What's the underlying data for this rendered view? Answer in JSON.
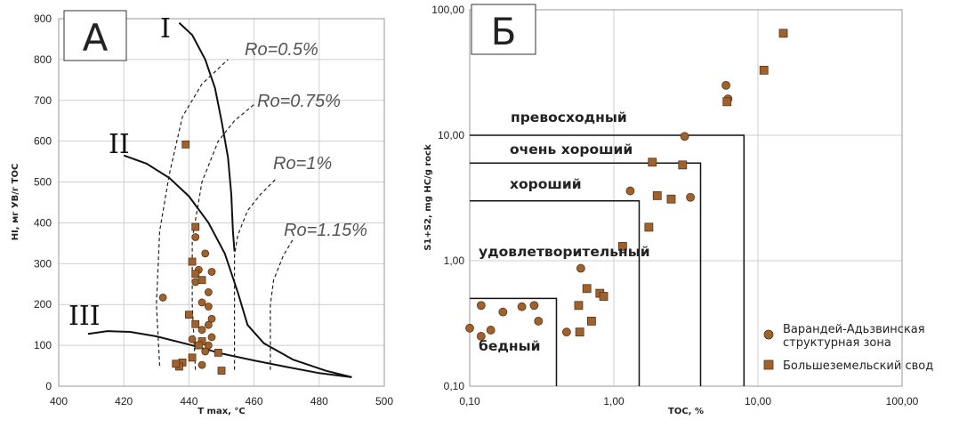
{
  "chart_data": [
    {
      "type": "scatter",
      "panel_label": "А",
      "xlabel": "T max, °C",
      "ylabel": "HI, мг УВ/г ТОС",
      "xlim": [
        400,
        500
      ],
      "ylim": [
        0,
        900
      ],
      "x_ticks": [
        "400",
        "420",
        "440",
        "460",
        "480",
        "500"
      ],
      "y_ticks": [
        "0",
        "100",
        "200",
        "300",
        "400",
        "500",
        "600",
        "700",
        "800",
        "900"
      ],
      "grid": true,
      "kerogen_curves": [
        {
          "label": "I",
          "points": [
            [
              437,
              890
            ],
            [
              441,
              860
            ],
            [
              445,
              800
            ],
            [
              448,
              730
            ],
            [
              450,
              650
            ],
            [
              452,
              560
            ],
            [
              453,
              470
            ],
            [
              453.5,
              380
            ],
            [
              454,
              330
            ]
          ]
        },
        {
          "label": "II",
          "points": [
            [
              420,
              565
            ],
            [
              427,
              545
            ],
            [
              434,
              510
            ],
            [
              440,
              465
            ],
            [
              446,
              400
            ],
            [
              451,
              325
            ],
            [
              455,
              230
            ],
            [
              458,
              150
            ],
            [
              463,
              105
            ],
            [
              472,
              65
            ],
            [
              482,
              38
            ],
            [
              490,
              22
            ]
          ]
        },
        {
          "label": "III",
          "points": [
            [
              409,
              128
            ],
            [
              415,
              135
            ],
            [
              422,
              133
            ],
            [
              430,
              122
            ],
            [
              440,
              102
            ],
            [
              450,
              80
            ],
            [
              460,
              63
            ],
            [
              470,
              47
            ],
            [
              480,
              32
            ],
            [
              490,
              22
            ]
          ]
        }
      ],
      "maturity_lines": [
        {
          "label": "Ro=0.5%",
          "points": [
            [
              431,
              50
            ],
            [
              430,
              200
            ],
            [
              431,
              380
            ],
            [
              434,
              520
            ],
            [
              438,
              660
            ],
            [
              444,
              740
            ],
            [
              452,
              800
            ]
          ]
        },
        {
          "label": "Ro=0.75%",
          "points": [
            [
              442,
              40
            ],
            [
              441,
              200
            ],
            [
              441,
              360
            ],
            [
              444,
              500
            ],
            [
              449,
              600
            ],
            [
              454,
              650
            ],
            [
              460,
              690
            ]
          ]
        },
        {
          "label": "Ro=1%",
          "points": [
            [
              454,
              40
            ],
            [
              454,
              200
            ],
            [
              454,
              320
            ],
            [
              455,
              370
            ],
            [
              458,
              430
            ],
            [
              462,
              470
            ],
            [
              467,
              510
            ]
          ]
        },
        {
          "label": "Ro=1.15%",
          "points": [
            [
              465,
              40
            ],
            [
              465,
              200
            ],
            [
              466,
              260
            ],
            [
              469,
              320
            ],
            [
              472,
              360
            ]
          ]
        }
      ],
      "series": [
        {
          "name": "Варандей-Адьзвинская структурная зона",
          "marker": "circle",
          "color": "#a0622d",
          "points": [
            [
              432,
              217
            ],
            [
              441,
              115
            ],
            [
              442,
              365
            ],
            [
              442,
              255
            ],
            [
              443,
              285
            ],
            [
              444,
              205
            ],
            [
              444,
              138
            ],
            [
              445,
              325
            ],
            [
              445,
              85
            ],
            [
              446,
              230
            ],
            [
              446,
              195
            ],
            [
              446,
              150
            ],
            [
              447,
              280
            ],
            [
              447,
              165
            ],
            [
              447,
              120
            ],
            [
              444,
              52
            ],
            [
              446,
              100
            ]
          ]
        },
        {
          "name": "Большеземельский свод",
          "marker": "square",
          "color": "#a0622d",
          "points": [
            [
              439,
              592
            ],
            [
              442,
              390
            ],
            [
              441,
              305
            ],
            [
              442,
              275
            ],
            [
              444,
              260
            ],
            [
              440,
              175
            ],
            [
              442,
              152
            ],
            [
              444,
              110
            ],
            [
              443,
              100
            ],
            [
              441,
              70
            ],
            [
              438,
              58
            ],
            [
              437,
              48
            ],
            [
              436,
              55
            ],
            [
              449,
              82
            ],
            [
              450,
              38
            ]
          ]
        }
      ]
    },
    {
      "type": "scatter",
      "panel_label": "Б",
      "xlabel": "TOC, %",
      "ylabel": "S1+S2, mg HC/g rock",
      "x_scale": "log",
      "y_scale": "log",
      "xlim": [
        0.1,
        100
      ],
      "ylim": [
        0.1,
        100
      ],
      "x_ticks": [
        "0,10",
        "1,00",
        "10,00",
        "100,00"
      ],
      "y_ticks": [
        "0,10",
        "1,00",
        "10,00",
        "100,00"
      ],
      "grid": true,
      "categories": [
        {
          "label": "бедный",
          "toc": 0.4,
          "s1s2": 0.5
        },
        {
          "label": "удовлетворительный",
          "toc": 1.5,
          "s1s2": 3
        },
        {
          "label": "хороший",
          "toc": 4,
          "s1s2": 6
        },
        {
          "label": "очень хороший",
          "toc": 4,
          "s1s2": 6
        },
        {
          "label": "превосходный",
          "toc": 8,
          "s1s2": 10
        }
      ],
      "legend": [
        "Варандей-Адьзвинская структурная зона",
        "Большеземельский свод"
      ],
      "legend_position": "bottom-right",
      "series": [
        {
          "name": "Варандей-Адьзвинская структурная зона",
          "marker": "circle",
          "color": "#a0622d",
          "points": [
            [
              0.1,
              0.29
            ],
            [
              0.12,
              0.25
            ],
            [
              0.12,
              0.44
            ],
            [
              0.14,
              0.28
            ],
            [
              0.17,
              0.39
            ],
            [
              0.23,
              0.43
            ],
            [
              0.28,
              0.44
            ],
            [
              0.3,
              0.33
            ],
            [
              0.47,
              0.27
            ],
            [
              0.59,
              0.87
            ],
            [
              1.3,
              3.6
            ],
            [
              3.1,
              9.8
            ],
            [
              3.4,
              3.2
            ],
            [
              6.0,
              25
            ],
            [
              6.2,
              19.5
            ]
          ]
        },
        {
          "name": "Большеземельский свод",
          "marker": "square",
          "color": "#a0622d",
          "points": [
            [
              0.57,
              0.44
            ],
            [
              0.58,
              0.27
            ],
            [
              0.65,
              0.6
            ],
            [
              0.7,
              0.33
            ],
            [
              0.8,
              0.55
            ],
            [
              0.85,
              0.52
            ],
            [
              1.15,
              1.3
            ],
            [
              1.75,
              1.85
            ],
            [
              1.85,
              6.1
            ],
            [
              2.0,
              3.3
            ],
            [
              2.5,
              3.1
            ],
            [
              3.0,
              5.8
            ],
            [
              6.1,
              18.5
            ],
            [
              11,
              33
            ],
            [
              15,
              65
            ]
          ]
        }
      ]
    }
  ]
}
